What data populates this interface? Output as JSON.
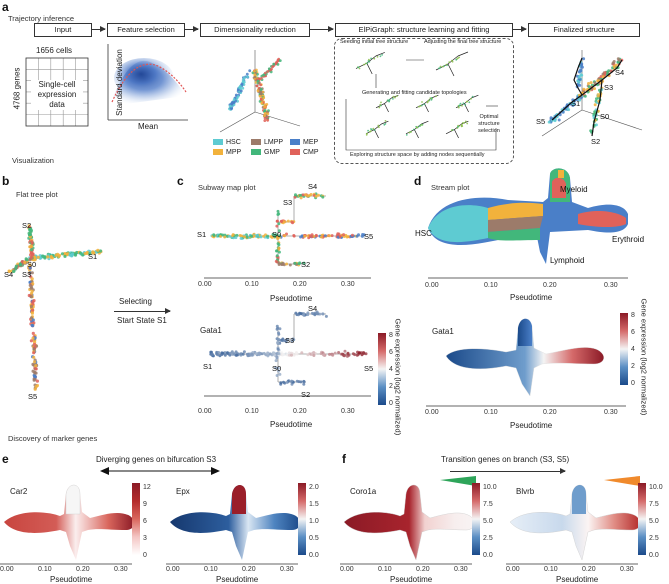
{
  "colors": {
    "hsc": "#5ecbd2",
    "mpp": "#f2b23c",
    "lmpp": "#9c7b6a",
    "gmp": "#42b77b",
    "mep": "#4a7fc8",
    "cmp": "#e0625a",
    "gene_low": "#1b4a8a",
    "gene_mid": "#f4f4f4",
    "gene_high": "#8b1a26"
  },
  "panel_a": {
    "letter": "a",
    "section": "Trajectory inference",
    "steps": [
      "Input",
      "Feature selection",
      "Dimensionality reduction",
      "ElPiGraph: structure learning and fitting",
      "Finalized structure"
    ],
    "cells": "1656 cells",
    "genes": "4768 genes",
    "data_box": "Single-cell expression data",
    "fs_ylabel": "Standard deviation",
    "fs_xlabel": "Mean",
    "elpi_notes": [
      "Seeding initial tree structure",
      "Adjusting the final tree structure",
      "Generating and fitting candidate topologies",
      "Optimal structure selection",
      "Exploring structure space by adding nodes sequentially"
    ],
    "legend": [
      "HSC",
      "LMPP",
      "MEP",
      "MPP",
      "GMP",
      "CMP"
    ],
    "final_labels": [
      "S1",
      "S2",
      "S3",
      "S4",
      "S5",
      "S0"
    ]
  },
  "visualization": "Visualization",
  "panel_b": {
    "letter": "b",
    "title": "Flat tree plot",
    "labels": [
      "S2",
      "S0",
      "S1",
      "S4",
      "S3",
      "S5"
    ],
    "selecting": "Selecting",
    "start_state": "Start State S1"
  },
  "panel_c": {
    "letter": "c",
    "title": "Subway map plot",
    "labels": [
      "S4",
      "S3",
      "S1",
      "S0",
      "S5",
      "S2"
    ],
    "xlabel": "Pseudotime",
    "xticks": [
      "0.00",
      "0.10",
      "0.20",
      "0.30"
    ],
    "gene": "Gata1",
    "cbar_label": "Gene expression (log2 normalized)",
    "cbar_ticks": [
      "0",
      "2",
      "4",
      "6",
      "8"
    ],
    "gene_labels": [
      "S4",
      "S3",
      "S1",
      "S0",
      "S5",
      "S2"
    ]
  },
  "panel_d": {
    "letter": "d",
    "title": "Stream plot",
    "labels": [
      "HSC",
      "Myeloid",
      "Erythroid",
      "Lymphoid"
    ],
    "xlabel": "Pseudotime",
    "xticks": [
      "0.00",
      "0.10",
      "0.20",
      "0.30"
    ],
    "gene": "Gata1",
    "cbar_label": "Gene expression (log2 normalized)",
    "cbar_ticks": [
      "0",
      "2",
      "4",
      "6",
      "8"
    ]
  },
  "discovery": "Discovery of marker genes",
  "panel_e": {
    "letter": "e",
    "title": "Diverging genes on bifurcation S3",
    "genes": [
      "Car2",
      "Epx"
    ],
    "cbar1_ticks": [
      "0",
      "3",
      "6",
      "9",
      "12"
    ],
    "cbar2_ticks": [
      "0.0",
      "0.5",
      "1.0",
      "1.5",
      "2.0"
    ],
    "xlabel": "Pseudotime",
    "xticks": [
      "0.00",
      "0.10",
      "0.20",
      "0.30"
    ]
  },
  "panel_f": {
    "letter": "f",
    "title": "Transition genes on branch (S3, S5)",
    "genes": [
      "Coro1a",
      "Blvrb"
    ],
    "cbar1_ticks": [
      "0.0",
      "2.5",
      "5.0",
      "7.5",
      "10.0"
    ],
    "cbar2_ticks": [
      "0.0",
      "2.5",
      "5.0",
      "7.5",
      "10.0"
    ],
    "xlabel": "Pseudotime",
    "xticks": [
      "0.00",
      "0.10",
      "0.20",
      "0.30"
    ]
  }
}
